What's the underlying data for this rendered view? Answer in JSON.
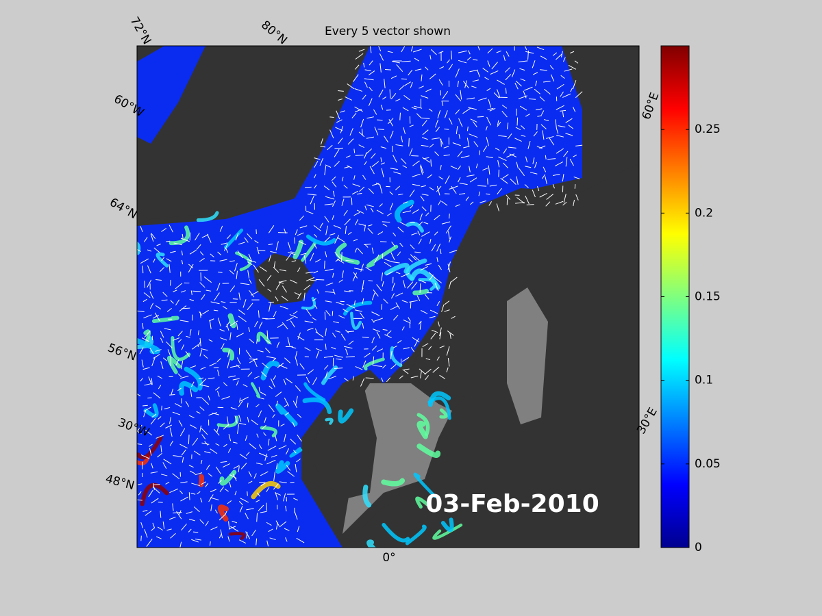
{
  "title": "Every 5 vector shown",
  "map": {
    "date": "03-Feb-2010",
    "graticule_labels": [
      "72°N",
      "80°N",
      "60°W",
      "64°N",
      "56°N",
      "30°W",
      "48°N",
      "0°",
      "30°E",
      "60°E"
    ]
  },
  "colorbar": {
    "colormap": "jet",
    "ylim": [
      0,
      0.3
    ],
    "yticks": [
      0,
      0.05,
      0.1,
      0.15,
      0.2,
      0.25
    ]
  }
}
